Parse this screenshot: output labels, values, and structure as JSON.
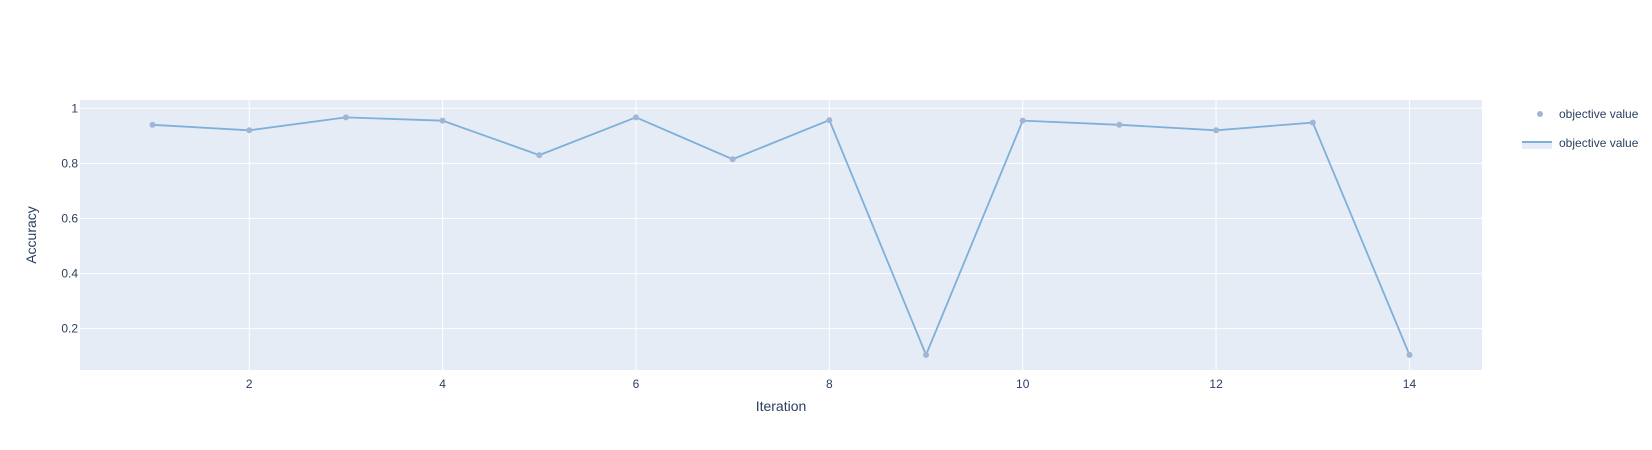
{
  "chart_data": {
    "type": "line",
    "xlabel": "Iteration",
    "ylabel": "Accuracy",
    "xlim": [
      0.25,
      14.75
    ],
    "ylim": [
      0.05,
      1.03
    ],
    "x_ticks": [
      2,
      4,
      6,
      8,
      10,
      12,
      14
    ],
    "y_ticks": [
      0.2,
      0.4,
      0.6,
      0.8,
      1
    ],
    "y_tick_labels": [
      "0.2",
      "0.4",
      "0.6",
      "0.8",
      "1"
    ],
    "grid": true,
    "legend_position": "top-right",
    "x": [
      1,
      2,
      3,
      4,
      5,
      6,
      7,
      8,
      9,
      10,
      11,
      12,
      13,
      14
    ],
    "series": [
      {
        "name": "objective value",
        "mode": "markers",
        "values": [
          0.94,
          0.92,
          0.967,
          0.955,
          0.83,
          0.967,
          0.815,
          0.957,
          0.105,
          0.955,
          0.94,
          0.92,
          0.948,
          0.105
        ]
      },
      {
        "name": "objective value",
        "mode": "lines",
        "values": [
          0.94,
          0.92,
          0.967,
          0.955,
          0.83,
          0.967,
          0.815,
          0.957,
          0.105,
          0.955,
          0.94,
          0.92,
          0.948,
          0.105
        ]
      }
    ],
    "colors": {
      "plot_bg": "#e5ecf6",
      "grid": "#ffffff",
      "line": "#7eb0d9",
      "marker": "#a3b5d6",
      "text": "#2a3f5f"
    }
  }
}
